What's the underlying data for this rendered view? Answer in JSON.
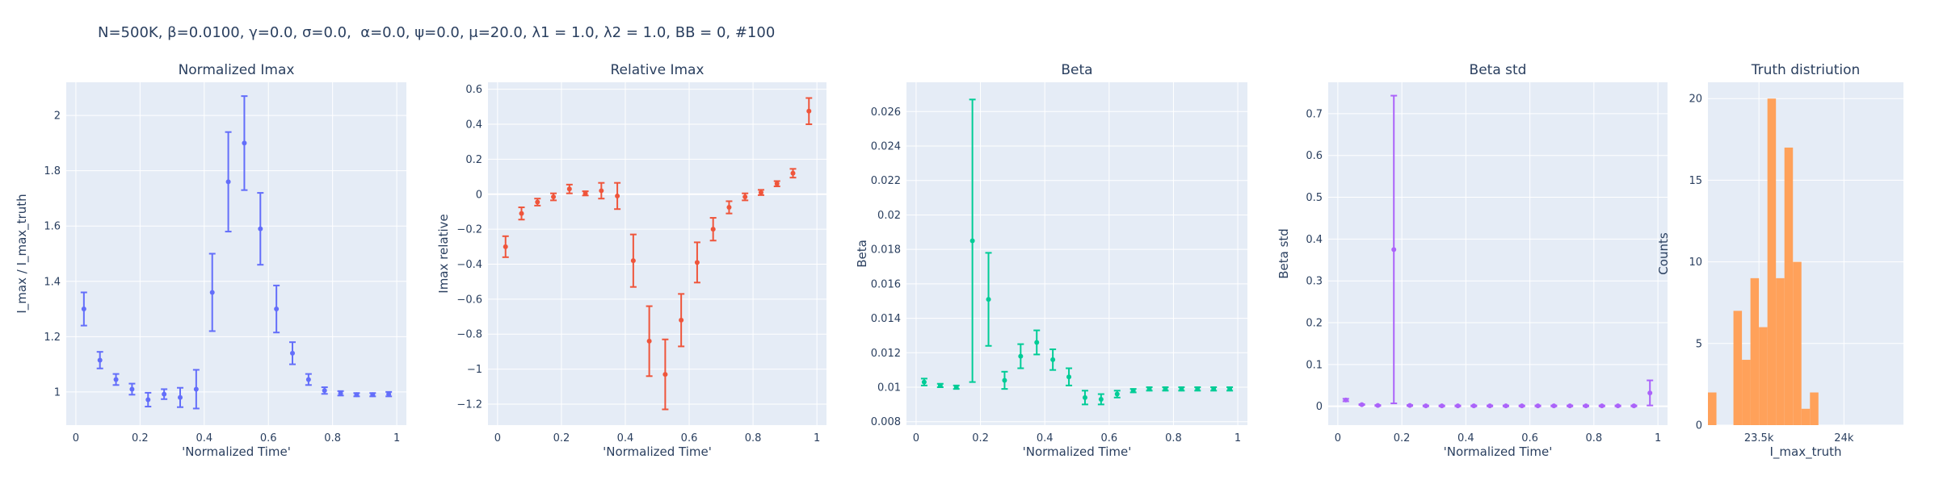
{
  "figure": {
    "title": "N=500K, β=0.0100, γ=0.0, σ=0.0,  α=0.0, ψ=0.0, μ=20.0, λ1 = 1.0, λ2 = 1.0, BB = 0, #100",
    "plot_bg": "#E5ECF6",
    "grid_color": "#ffffff"
  },
  "chart_data": [
    {
      "type": "scatter",
      "title": "Normalized Imax",
      "xlabel": "'Normalized Time'",
      "ylabel": "I_max / I_max_truth",
      "color": "#636EFA",
      "xlim": [
        -0.03,
        1.03
      ],
      "ylim": [
        0.88,
        2.12
      ],
      "xticks": [
        0,
        0.2,
        0.4,
        0.6,
        0.8,
        1
      ],
      "xtick_labels": [
        "0",
        "0.2",
        "0.4",
        "0.6",
        "0.8",
        "1"
      ],
      "yticks": [
        1,
        1.2,
        1.4,
        1.6,
        1.8,
        2
      ],
      "ytick_labels": [
        "1",
        "1.2",
        "1.4",
        "1.6",
        "1.8",
        "2"
      ],
      "x": [
        0.025,
        0.075,
        0.125,
        0.175,
        0.225,
        0.275,
        0.325,
        0.375,
        0.425,
        0.475,
        0.525,
        0.575,
        0.625,
        0.675,
        0.725,
        0.775,
        0.825,
        0.875,
        0.925,
        0.975
      ],
      "y": [
        1.3,
        1.115,
        1.045,
        1.01,
        0.972,
        0.992,
        0.98,
        1.01,
        1.36,
        1.76,
        1.9,
        1.59,
        1.3,
        1.14,
        1.045,
        1.005,
        0.995,
        0.99,
        0.99,
        0.992
      ],
      "err": [
        0.06,
        0.03,
        0.02,
        0.02,
        0.025,
        0.018,
        0.035,
        0.07,
        0.14,
        0.18,
        0.17,
        0.13,
        0.085,
        0.04,
        0.02,
        0.012,
        0.008,
        0.006,
        0.006,
        0.008
      ]
    },
    {
      "type": "scatter",
      "title": "Relative Imax",
      "xlabel": "'Normalized Time'",
      "ylabel": "Imax relative",
      "color": "#EF553B",
      "xlim": [
        -0.03,
        1.03
      ],
      "ylim": [
        -1.32,
        0.64
      ],
      "xticks": [
        0,
        0.2,
        0.4,
        0.6,
        0.8,
        1
      ],
      "xtick_labels": [
        "0",
        "0.2",
        "0.4",
        "0.6",
        "0.8",
        "1"
      ],
      "yticks": [
        -1.2,
        -1,
        -0.8,
        -0.6,
        -0.4,
        -0.2,
        0,
        0.2,
        0.4,
        0.6
      ],
      "ytick_labels": [
        "−1.2",
        "−1",
        "−0.8",
        "−0.6",
        "−0.4",
        "−0.2",
        "0",
        "0.2",
        "0.4",
        "0.6"
      ],
      "x": [
        0.025,
        0.075,
        0.125,
        0.175,
        0.225,
        0.275,
        0.325,
        0.375,
        0.425,
        0.475,
        0.525,
        0.575,
        0.625,
        0.675,
        0.725,
        0.775,
        0.825,
        0.875,
        0.925,
        0.975
      ],
      "y": [
        -0.3,
        -0.11,
        -0.045,
        -0.015,
        0.03,
        0.005,
        0.02,
        -0.01,
        -0.38,
        -0.84,
        -1.03,
        -0.72,
        -0.39,
        -0.2,
        -0.075,
        -0.015,
        0.01,
        0.06,
        0.12,
        0.475
      ],
      "err": [
        0.06,
        0.035,
        0.02,
        0.02,
        0.025,
        0.012,
        0.045,
        0.075,
        0.15,
        0.2,
        0.2,
        0.15,
        0.115,
        0.065,
        0.035,
        0.02,
        0.015,
        0.015,
        0.025,
        0.075
      ]
    },
    {
      "type": "scatter",
      "title": "Beta",
      "xlabel": "'Normalized Time'",
      "ylabel": "Beta",
      "color": "#00CC96",
      "xlim": [
        -0.03,
        1.03
      ],
      "ylim": [
        0.0078,
        0.0277
      ],
      "xticks": [
        0,
        0.2,
        0.4,
        0.6,
        0.8,
        1
      ],
      "xtick_labels": [
        "0",
        "0.2",
        "0.4",
        "0.6",
        "0.8",
        "1"
      ],
      "yticks": [
        0.008,
        0.01,
        0.012,
        0.014,
        0.016,
        0.018,
        0.02,
        0.022,
        0.024,
        0.026
      ],
      "ytick_labels": [
        "0.008",
        "0.01",
        "0.012",
        "0.014",
        "0.016",
        "0.018",
        "0.02",
        "0.022",
        "0.024",
        "0.026"
      ],
      "x": [
        0.025,
        0.075,
        0.125,
        0.175,
        0.225,
        0.275,
        0.325,
        0.375,
        0.425,
        0.475,
        0.525,
        0.575,
        0.625,
        0.675,
        0.725,
        0.775,
        0.825,
        0.875,
        0.925,
        0.975
      ],
      "y": [
        0.0103,
        0.0101,
        0.01,
        0.0185,
        0.0151,
        0.0104,
        0.0118,
        0.0126,
        0.0116,
        0.0106,
        0.0094,
        0.0093,
        0.0096,
        0.0098,
        0.0099,
        0.0099,
        0.0099,
        0.0099,
        0.0099,
        0.0099
      ],
      "err": [
        0.0002,
        0.0001,
        0.0001,
        0.0082,
        0.0027,
        0.0005,
        0.0007,
        0.0007,
        0.0006,
        0.0005,
        0.0004,
        0.0003,
        0.0002,
        0.0001,
        0.0001,
        0.0001,
        0.0001,
        0.0001,
        0.0001,
        0.0001
      ]
    },
    {
      "type": "scatter",
      "title": "Beta std",
      "xlabel": "'Normalized Time'",
      "ylabel": "Beta std",
      "color": "#AB63FA",
      "xlim": [
        -0.03,
        1.03
      ],
      "ylim": [
        -0.045,
        0.775
      ],
      "xticks": [
        0,
        0.2,
        0.4,
        0.6,
        0.8,
        1
      ],
      "xtick_labels": [
        "0",
        "0.2",
        "0.4",
        "0.6",
        "0.8",
        "1"
      ],
      "yticks": [
        0,
        0.1,
        0.2,
        0.3,
        0.4,
        0.5,
        0.6,
        0.7
      ],
      "ytick_labels": [
        "0",
        "0.1",
        "0.2",
        "0.3",
        "0.4",
        "0.5",
        "0.6",
        "0.7"
      ],
      "x": [
        0.025,
        0.075,
        0.125,
        0.175,
        0.225,
        0.275,
        0.325,
        0.375,
        0.425,
        0.475,
        0.525,
        0.575,
        0.625,
        0.675,
        0.725,
        0.775,
        0.825,
        0.875,
        0.925,
        0.975
      ],
      "y": [
        0.015,
        0.004,
        0.002,
        0.375,
        0.002,
        0.001,
        0.001,
        0.001,
        0.001,
        0.001,
        0.001,
        0.001,
        0.001,
        0.001,
        0.001,
        0.001,
        0.001,
        0.001,
        0.001,
        0.032
      ],
      "err": [
        0.003,
        0.001,
        0.001,
        0.368,
        0.001,
        0.001,
        0.001,
        0.001,
        0.001,
        0.001,
        0.001,
        0.001,
        0.001,
        0.001,
        0.001,
        0.001,
        0.001,
        0.001,
        0.001,
        0.03
      ]
    },
    {
      "type": "bar",
      "title": "Truth distriution",
      "xlabel": "I_max_truth",
      "ylabel": "Counts",
      "color": "#FFA15A",
      "xlim": [
        23200,
        24350
      ],
      "ylim": [
        0,
        21
      ],
      "xticks": [
        23500,
        24000
      ],
      "xtick_labels": [
        "23.5k",
        "24k"
      ],
      "yticks": [
        0,
        5,
        10,
        15,
        20
      ],
      "ytick_labels": [
        "0",
        "5",
        "10",
        "15",
        "20"
      ],
      "bin_edges": [
        23200,
        23250,
        23300,
        23350,
        23400,
        23450,
        23500,
        23550,
        23600,
        23650,
        23700,
        23750,
        23800,
        23850,
        23900,
        23950,
        24000,
        24050,
        24100,
        24150,
        24200,
        24250,
        24300,
        24350
      ],
      "counts": [
        2,
        0,
        0,
        7,
        4,
        9,
        6,
        20,
        9,
        17,
        10,
        1,
        2,
        0,
        0,
        0,
        0,
        0,
        0,
        0,
        0,
        0,
        0
      ]
    }
  ]
}
